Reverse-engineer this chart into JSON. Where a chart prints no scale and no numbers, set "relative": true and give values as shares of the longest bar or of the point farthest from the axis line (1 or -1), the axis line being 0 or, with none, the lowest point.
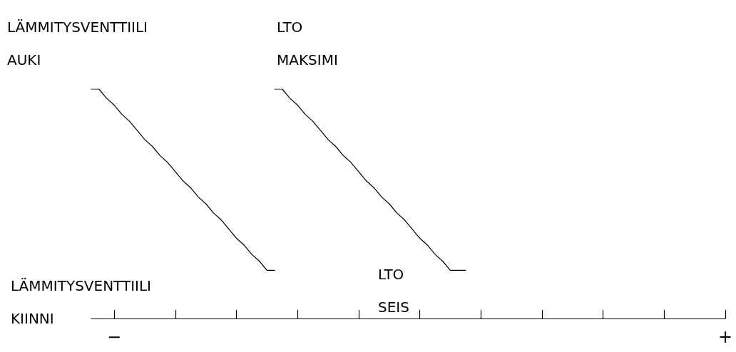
{
  "chart_data": {
    "type": "line",
    "relative": true,
    "marker": "none",
    "line_style": "solid",
    "categories": [
      null,
      null,
      null,
      "−",
      null,
      null,
      null,
      null,
      null,
      null,
      null,
      null,
      null,
      null,
      null,
      null,
      null,
      null,
      null,
      null,
      null,
      null,
      null,
      null,
      null,
      null,
      null,
      null,
      null,
      null,
      null,
      null,
      null,
      null,
      null,
      null,
      null,
      null,
      null,
      null,
      null,
      null,
      null,
      null,
      null,
      null,
      null,
      null,
      null,
      null,
      null,
      null,
      null,
      null,
      null,
      null,
      null,
      null,
      null,
      null,
      null,
      null,
      null,
      null,
      null,
      null,
      null,
      null,
      null,
      null,
      null,
      null,
      null,
      null,
      null,
      null,
      null,
      null,
      null,
      null,
      null,
      null,
      null,
      "+"
    ],
    "series": [
      {
        "color": "#000000",
        "values": [
          1,
          1,
          0.96,
          0.93,
          0.89,
          0.86,
          0.82,
          0.78,
          0.75,
          0.71,
          0.68,
          0.64,
          0.6,
          0.57,
          0.53,
          0.5,
          0.46,
          0.43,
          0.39,
          0.35,
          0.32,
          0.28,
          0.25,
          0.21,
          0.21,
          null,
          null,
          null,
          null,
          null,
          null,
          null,
          null,
          null,
          null,
          null,
          null,
          null,
          null,
          null,
          null,
          null,
          null,
          null,
          null,
          null,
          null,
          null,
          null,
          null,
          null,
          null,
          null,
          null,
          null,
          null,
          null,
          null,
          null,
          null,
          null,
          null,
          null,
          null,
          null,
          null,
          null,
          null,
          null,
          null,
          null,
          null,
          null,
          null,
          null,
          null,
          null,
          null,
          null,
          null,
          null,
          null,
          null,
          null
        ]
      },
      {
        "color": "#000000",
        "values": [
          null,
          null,
          null,
          null,
          null,
          null,
          null,
          null,
          null,
          null,
          null,
          null,
          null,
          null,
          null,
          null,
          null,
          null,
          null,
          null,
          null,
          null,
          null,
          null,
          1,
          1,
          0.96,
          0.93,
          0.89,
          0.86,
          0.82,
          0.78,
          0.75,
          0.71,
          0.68,
          0.64,
          0.6,
          0.57,
          0.53,
          0.5,
          0.46,
          0.43,
          0.39,
          0.35,
          0.32,
          0.28,
          0.25,
          0.21,
          0.21,
          0.21,
          null,
          null,
          null,
          null,
          null,
          null,
          null,
          null,
          null,
          null,
          null,
          null,
          null,
          null,
          null,
          null,
          null,
          null,
          null,
          null,
          null,
          null,
          null,
          null,
          null,
          null,
          null,
          null,
          null,
          null,
          null,
          null,
          null,
          null
        ]
      }
    ],
    "annotations": [
      "LÄMMITYSVENTTIILI\nAUKI",
      "LTO\nMAKSIMI",
      "LÄMMITYSVENTTIILI\nKIINNI",
      "LTO\nSEIS"
    ]
  }
}
